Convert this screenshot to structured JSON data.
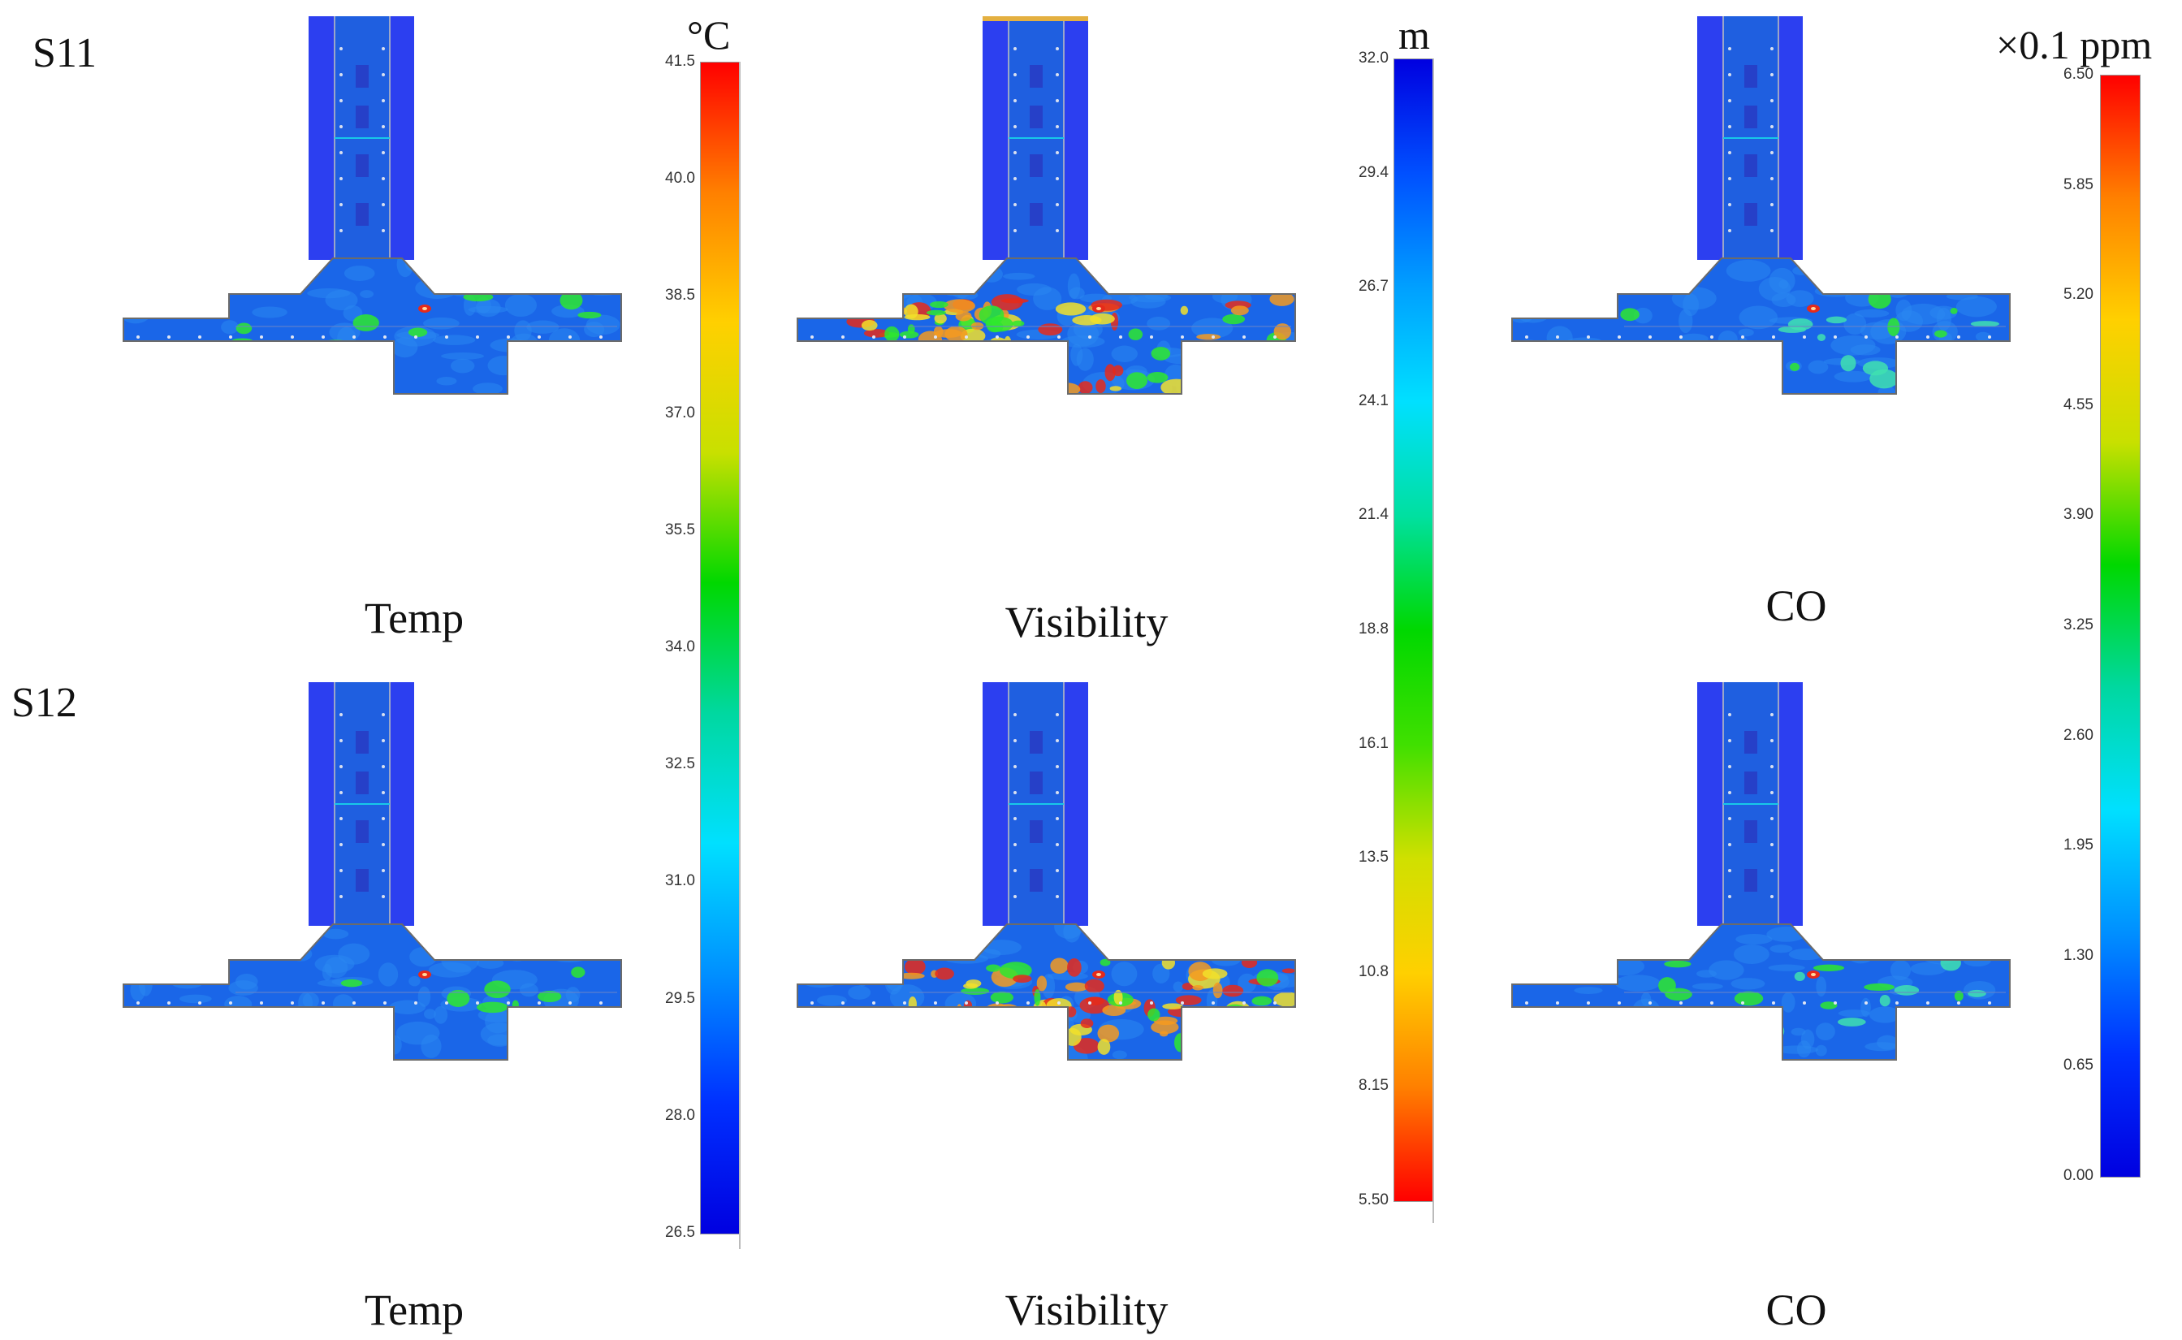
{
  "scenarios": [
    {
      "label": "S11"
    },
    {
      "label": "S12"
    }
  ],
  "panel_captions": {
    "temperature": "Temp",
    "visibility": "Visibility",
    "co": "CO"
  },
  "colorbars": {
    "temperature": {
      "unit": "°C",
      "ticks": [
        "41.5",
        "40.0",
        "38.5",
        "37.0",
        "35.5",
        "34.0",
        "32.5",
        "31.0",
        "29.5",
        "28.0",
        "26.5"
      ],
      "gradient": [
        "#ff0000",
        "#ff8000",
        "#ffd000",
        "#c8e000",
        "#00d800",
        "#00d8a0",
        "#00e0ff",
        "#0090ff",
        "#0030ff",
        "#0000e0"
      ]
    },
    "visibility": {
      "unit": "m",
      "ticks": [
        "32.0",
        "29.4",
        "26.7",
        "24.1",
        "21.4",
        "18.8",
        "16.1",
        "13.5",
        "10.8",
        "8.15",
        "5.50"
      ],
      "gradient": [
        "#0000e0",
        "#0050ff",
        "#00a0ff",
        "#00e0ff",
        "#00e0a0",
        "#00d800",
        "#40e000",
        "#d0e000",
        "#ffd000",
        "#ff8000",
        "#ff0000"
      ]
    },
    "co": {
      "unit": "×0.1 ppm",
      "ticks": [
        "6.50",
        "5.85",
        "5.20",
        "4.55",
        "3.90",
        "3.25",
        "2.60",
        "1.95",
        "1.30",
        "0.65",
        "0.00"
      ],
      "gradient": [
        "#ff0000",
        "#ff8000",
        "#ffd000",
        "#c8e000",
        "#00d800",
        "#00d8a0",
        "#00e0ff",
        "#0090ff",
        "#0030ff",
        "#0000e0"
      ]
    }
  },
  "colors": {
    "shaft_dark": "#2c3ff0",
    "shaft_mid": "#1f5fe0",
    "floor_blue": "#1a66e8",
    "floor_light": "#2a86f0",
    "green": "#2ee82e",
    "yellow": "#f2e12a",
    "orange": "#f59a20",
    "red": "#e62a1a",
    "outline": "#6b6b6b"
  }
}
